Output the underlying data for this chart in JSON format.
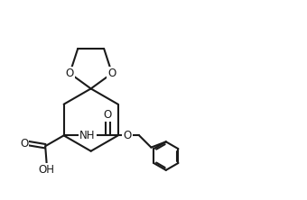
{
  "background_color": "#ffffff",
  "line_color": "#1a1a1a",
  "line_width": 1.5,
  "figsize": [
    3.4,
    2.22
  ],
  "dpi": 100,
  "xlim": [
    -1.0,
    9.0
  ],
  "ylim": [
    -2.5,
    4.5
  ]
}
